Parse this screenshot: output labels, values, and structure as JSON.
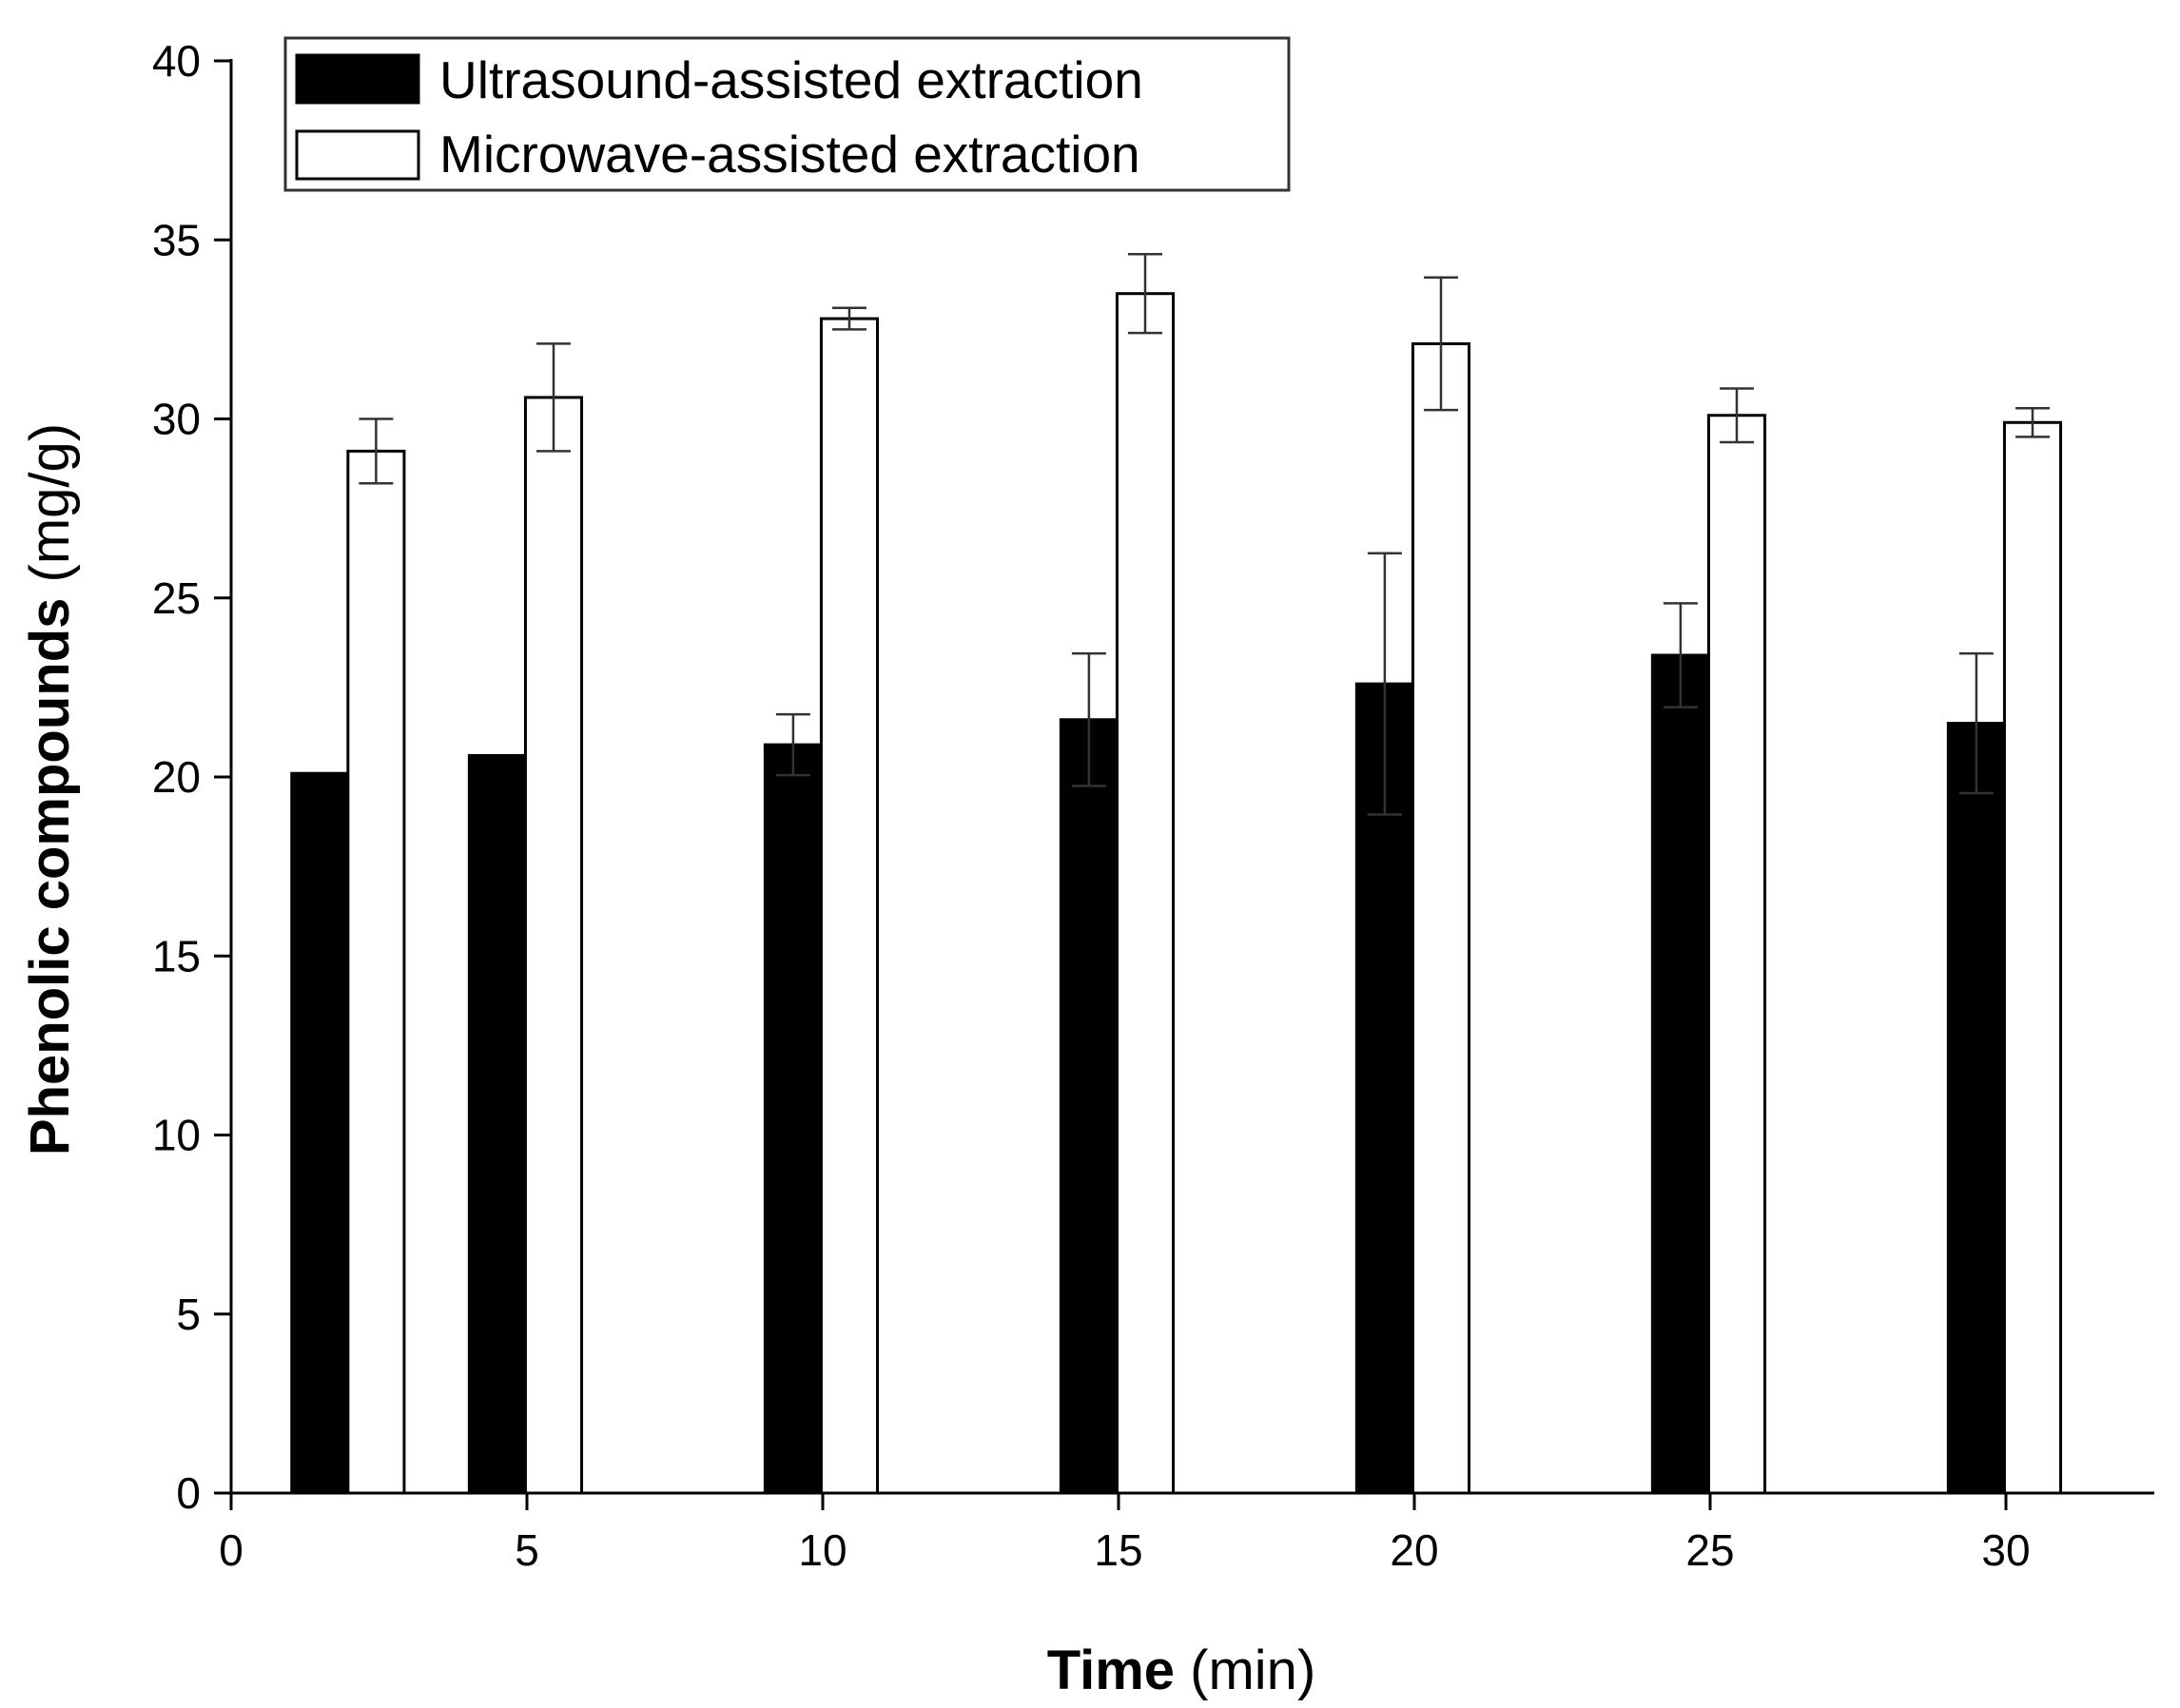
{
  "chart_data": {
    "type": "bar",
    "title": "",
    "xlabel_bold": "Time",
    "xlabel_unit": "(min)",
    "ylabel_bold": "Phenolic compounds",
    "ylabel_unit": "(mg/g)",
    "xlim": [
      0,
      32.5
    ],
    "ylim": [
      0,
      40
    ],
    "x_ticks": [
      0,
      5,
      10,
      15,
      20,
      25,
      30
    ],
    "y_ticks": [
      0,
      5,
      10,
      15,
      20,
      25,
      30,
      35,
      40
    ],
    "bar_width": 0.95,
    "grid": false,
    "legend_position": "top-left",
    "series": [
      {
        "name": "Ultrasound-assisted extraction",
        "color": "#000000",
        "x": [
          1.5,
          4.5,
          9.5,
          14.5,
          19.5,
          24.5,
          29.5
        ],
        "values": [
          20.1,
          20.6,
          20.9,
          21.6,
          22.6,
          23.4,
          21.5
        ],
        "errors": [
          0,
          0,
          0.85,
          1.85,
          3.65,
          1.45,
          1.95
        ]
      },
      {
        "name": "Microwave-assisted extraction",
        "color": "#ffffff",
        "x": [
          2.45,
          5.45,
          10.45,
          15.45,
          20.45,
          25.45,
          30.45
        ],
        "values": [
          29.1,
          30.6,
          32.8,
          33.5,
          32.1,
          30.1,
          29.9
        ],
        "errors": [
          0.9,
          1.5,
          0.3,
          1.1,
          1.85,
          0.75,
          0.4
        ]
      }
    ]
  }
}
